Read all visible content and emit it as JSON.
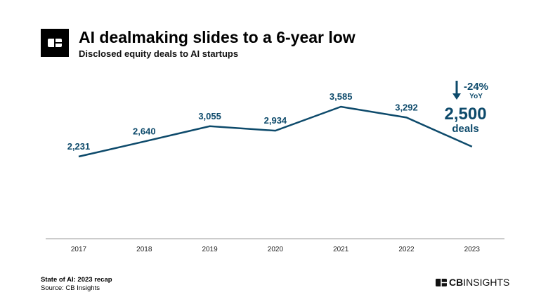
{
  "header": {
    "title": "AI dealmaking slides to a 6-year low",
    "subtitle": "Disclosed equity deals to AI startups"
  },
  "annotation": {
    "change": "-24%",
    "period": "YoY",
    "value": "2,500",
    "unit": "deals"
  },
  "footer": {
    "report": "State of AI: 2023 recap",
    "source": "Source: CB Insights",
    "brand_bold": "CB",
    "brand_light": "INSIGHTS"
  },
  "colors": {
    "line": "#0d4a6b"
  },
  "chart_data": {
    "type": "line",
    "categories": [
      "2017",
      "2018",
      "2019",
      "2020",
      "2021",
      "2022",
      "2023"
    ],
    "values": [
      2231,
      2640,
      3055,
      2934,
      3585,
      3292,
      2500
    ],
    "labels": [
      "2,231",
      "2,640",
      "3,055",
      "2,934",
      "3,585",
      "3,292",
      ""
    ],
    "ylim": [
      0,
      4000
    ],
    "grid": false
  }
}
